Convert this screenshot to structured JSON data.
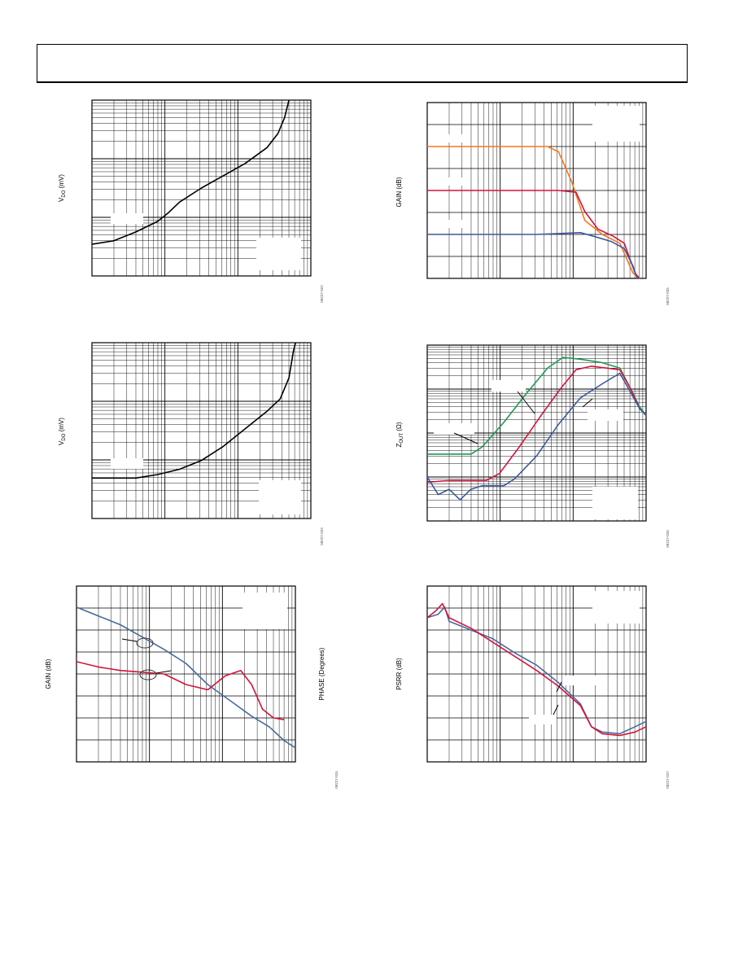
{
  "page": {
    "header_title": ""
  },
  "colors": {
    "grid": "#000000",
    "black": "#000000",
    "orange": "#f07820",
    "red": "#d2143c",
    "blue": "#3a5a9c",
    "green": "#1f9a55",
    "steel": "#4a6a9c"
  },
  "chart_data": [
    {
      "id": "vdo-1",
      "type": "line",
      "ylabel_main": "V",
      "ylabel_sub": "DO",
      "ylabel_rest": " (mV)",
      "figure_code": "08227-022",
      "xlog": true,
      "ylog": true,
      "x_decades": 3,
      "y_decades": 3,
      "series": [
        {
          "color": "black",
          "points": [
            [
              0,
              0.18
            ],
            [
              0.1,
              0.2
            ],
            [
              0.2,
              0.25
            ],
            [
              0.3,
              0.31
            ],
            [
              0.35,
              0.36
            ],
            [
              0.4,
              0.42
            ],
            [
              0.5,
              0.5
            ],
            [
              0.6,
              0.57
            ],
            [
              0.7,
              0.64
            ],
            [
              0.8,
              0.73
            ],
            [
              0.85,
              0.81
            ],
            [
              0.88,
              0.9
            ],
            [
              0.9,
              1.0
            ]
          ]
        }
      ]
    },
    {
      "id": "vdo-2",
      "type": "line",
      "ylabel_main": "V",
      "ylabel_sub": "DO",
      "ylabel_rest": " (mV)",
      "figure_code": "08227-023",
      "xlog": true,
      "ylog": true,
      "x_decades": 3,
      "y_decades": 3,
      "series": [
        {
          "color": "black",
          "points": [
            [
              0,
              0.23
            ],
            [
              0.2,
              0.23
            ],
            [
              0.3,
              0.25
            ],
            [
              0.4,
              0.28
            ],
            [
              0.5,
              0.33
            ],
            [
              0.6,
              0.41
            ],
            [
              0.7,
              0.51
            ],
            [
              0.8,
              0.61
            ],
            [
              0.86,
              0.68
            ],
            [
              0.9,
              0.8
            ],
            [
              0.92,
              0.95
            ],
            [
              0.93,
              1.0
            ]
          ]
        }
      ]
    },
    {
      "id": "gain-phase",
      "type": "line",
      "ylabel_left": "GAIN (dB)",
      "ylabel_right": "PHASE (Degrees)",
      "figure_code": "08227-024",
      "xlog": true,
      "ylog": false,
      "x_decades": 3,
      "y_divisions": 8,
      "series": [
        {
          "color": "steel",
          "points": [
            [
              0,
              0.88
            ],
            [
              0.1,
              0.83
            ],
            [
              0.2,
              0.78
            ],
            [
              0.3,
              0.71
            ],
            [
              0.4,
              0.64
            ],
            [
              0.5,
              0.56
            ],
            [
              0.6,
              0.44
            ],
            [
              0.7,
              0.35
            ],
            [
              0.8,
              0.26
            ],
            [
              0.88,
              0.2
            ],
            [
              0.95,
              0.12
            ],
            [
              1.0,
              0.08
            ]
          ]
        },
        {
          "color": "red",
          "points": [
            [
              0,
              0.57
            ],
            [
              0.1,
              0.54
            ],
            [
              0.2,
              0.52
            ],
            [
              0.3,
              0.51
            ],
            [
              0.4,
              0.5
            ],
            [
              0.5,
              0.44
            ],
            [
              0.6,
              0.41
            ],
            [
              0.68,
              0.49
            ],
            [
              0.75,
              0.52
            ],
            [
              0.8,
              0.44
            ],
            [
              0.85,
              0.3
            ],
            [
              0.9,
              0.25
            ],
            [
              0.95,
              0.24
            ]
          ]
        }
      ]
    },
    {
      "id": "gain-freq",
      "type": "line",
      "ylabel_left": "GAIN (dB)",
      "figure_code": "08227-025",
      "xlog": true,
      "ylog": false,
      "x_decades": 3,
      "y_divisions": 8,
      "series": [
        {
          "color": "orange",
          "points": [
            [
              0,
              0.75
            ],
            [
              0.55,
              0.75
            ],
            [
              0.6,
              0.72
            ],
            [
              0.66,
              0.55
            ],
            [
              0.72,
              0.33
            ],
            [
              0.8,
              0.25
            ],
            [
              0.88,
              0.2
            ],
            [
              0.94,
              0.03
            ],
            [
              0.97,
              0.0
            ]
          ]
        },
        {
          "color": "red",
          "points": [
            [
              0,
              0.5
            ],
            [
              0.6,
              0.5
            ],
            [
              0.68,
              0.49
            ],
            [
              0.72,
              0.38
            ],
            [
              0.78,
              0.28
            ],
            [
              0.85,
              0.24
            ],
            [
              0.9,
              0.2
            ],
            [
              0.95,
              0.03
            ],
            [
              0.97,
              0.0
            ]
          ]
        },
        {
          "color": "blue",
          "points": [
            [
              0,
              0.25
            ],
            [
              0.5,
              0.25
            ],
            [
              0.7,
              0.26
            ],
            [
              0.76,
              0.24
            ],
            [
              0.84,
              0.21
            ],
            [
              0.9,
              0.17
            ],
            [
              0.94,
              0.07
            ],
            [
              0.96,
              0.0
            ]
          ]
        }
      ]
    },
    {
      "id": "zout",
      "type": "line",
      "ylabel_main": "Z",
      "ylabel_sub": "OUT",
      "ylabel_rest": " (Ω)",
      "figure_code": "08227-026",
      "xlog": true,
      "ylog": true,
      "x_decades": 3,
      "y_decades": 4,
      "series": [
        {
          "color": "green",
          "points": [
            [
              0,
              0.38
            ],
            [
              0.2,
              0.38
            ],
            [
              0.25,
              0.42
            ],
            [
              0.35,
              0.56
            ],
            [
              0.45,
              0.72
            ],
            [
              0.55,
              0.87
            ],
            [
              0.62,
              0.93
            ],
            [
              0.7,
              0.92
            ],
            [
              0.8,
              0.9
            ],
            [
              0.88,
              0.87
            ],
            [
              0.93,
              0.75
            ],
            [
              0.97,
              0.65
            ],
            [
              1.0,
              0.6
            ]
          ]
        },
        {
          "color": "red",
          "points": [
            [
              0,
              0.22
            ],
            [
              0.1,
              0.23
            ],
            [
              0.27,
              0.23
            ],
            [
              0.33,
              0.27
            ],
            [
              0.42,
              0.42
            ],
            [
              0.52,
              0.6
            ],
            [
              0.62,
              0.77
            ],
            [
              0.68,
              0.86
            ],
            [
              0.75,
              0.88
            ],
            [
              0.88,
              0.86
            ],
            [
              0.93,
              0.75
            ],
            [
              0.97,
              0.64
            ],
            [
              1.0,
              0.6
            ]
          ]
        },
        {
          "color": "blue",
          "points": [
            [
              0,
              0.25
            ],
            [
              0.05,
              0.15
            ],
            [
              0.1,
              0.18
            ],
            [
              0.15,
              0.12
            ],
            [
              0.2,
              0.18
            ],
            [
              0.25,
              0.2
            ],
            [
              0.3,
              0.2
            ],
            [
              0.35,
              0.2
            ],
            [
              0.4,
              0.24
            ],
            [
              0.5,
              0.37
            ],
            [
              0.6,
              0.55
            ],
            [
              0.7,
              0.7
            ],
            [
              0.8,
              0.78
            ],
            [
              0.88,
              0.84
            ],
            [
              0.93,
              0.73
            ],
            [
              0.97,
              0.64
            ],
            [
              1.0,
              0.6
            ]
          ]
        }
      ]
    },
    {
      "id": "psrr",
      "type": "line",
      "ylabel_left": "PSRR (dB)",
      "figure_code": "08227-027",
      "xlog": true,
      "ylog": false,
      "x_decades": 3,
      "y_divisions": 8,
      "series": [
        {
          "color": "steel",
          "points": [
            [
              0,
              0.82
            ],
            [
              0.05,
              0.84
            ],
            [
              0.08,
              0.88
            ],
            [
              0.1,
              0.8
            ],
            [
              0.2,
              0.75
            ],
            [
              0.3,
              0.7
            ],
            [
              0.4,
              0.62
            ],
            [
              0.5,
              0.55
            ],
            [
              0.6,
              0.45
            ],
            [
              0.7,
              0.33
            ],
            [
              0.75,
              0.2
            ],
            [
              0.8,
              0.17
            ],
            [
              0.88,
              0.16
            ],
            [
              0.95,
              0.2
            ],
            [
              1.0,
              0.23
            ]
          ]
        },
        {
          "color": "red",
          "points": [
            [
              0,
              0.82
            ],
            [
              0.04,
              0.86
            ],
            [
              0.07,
              0.9
            ],
            [
              0.1,
              0.82
            ],
            [
              0.2,
              0.76
            ],
            [
              0.3,
              0.68
            ],
            [
              0.4,
              0.6
            ],
            [
              0.5,
              0.52
            ],
            [
              0.6,
              0.43
            ],
            [
              0.7,
              0.32
            ],
            [
              0.75,
              0.2
            ],
            [
              0.8,
              0.16
            ],
            [
              0.88,
              0.15
            ],
            [
              0.95,
              0.17
            ],
            [
              1.0,
              0.2
            ]
          ]
        }
      ]
    }
  ]
}
